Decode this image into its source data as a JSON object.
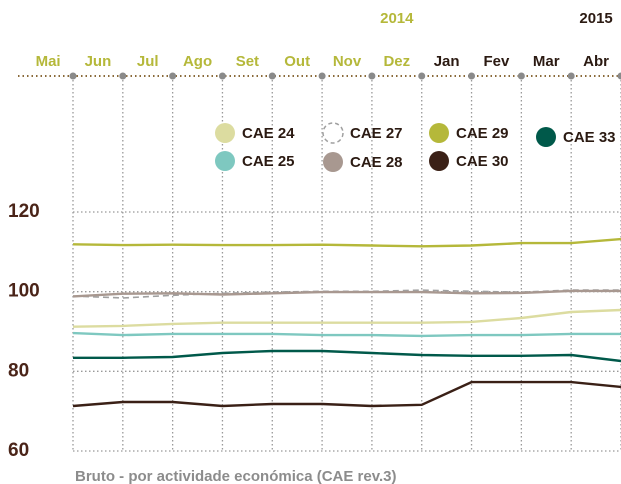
{
  "chart_data": {
    "type": "line",
    "categories": [
      "Mai",
      "Jun",
      "Jul",
      "Ago",
      "Set",
      "Out",
      "Nov",
      "Dez",
      "Jan",
      "Fev",
      "Mar",
      "Abr"
    ],
    "category_colors": [
      "#b5b83a",
      "#b5b83a",
      "#b5b83a",
      "#b5b83a",
      "#b5b83a",
      "#b5b83a",
      "#b5b83a",
      "#b5b83a",
      "#2b1a12",
      "#2b1a12",
      "#2b1a12",
      "#2b1a12"
    ],
    "annotations": [
      {
        "text": "2014",
        "category": 7,
        "color": "#b5b83a"
      },
      {
        "text": "2015",
        "category": 11,
        "color": "#2b1a12"
      }
    ],
    "series": [
      {
        "name": "CAE 24",
        "color": "#dcdca0",
        "values": [
          91.2,
          91.4,
          91.9,
          92.2,
          92.2,
          92.2,
          92.2,
          92.2,
          92.4,
          93.4,
          94.9,
          95.4
        ]
      },
      {
        "name": "CAE 25",
        "color": "#7ec8c0",
        "values": [
          89.6,
          89.1,
          89.4,
          89.4,
          89.4,
          89.1,
          89.1,
          88.9,
          89.1,
          89.1,
          89.4,
          89.4
        ]
      },
      {
        "name": "CAE 27",
        "color": "#a0a0a0",
        "dashed": true,
        "values": [
          98.9,
          98.4,
          99.1,
          99.6,
          99.9,
          100.1,
          100.1,
          100.4,
          100.1,
          99.9,
          100.4,
          100.4
        ]
      },
      {
        "name": "CAE 28",
        "color": "#a89890",
        "values": [
          98.8,
          99.5,
          99.6,
          99.3,
          99.6,
          99.9,
          99.9,
          99.9,
          99.6,
          99.7,
          100.2,
          100.2
        ]
      },
      {
        "name": "CAE 29",
        "color": "#b5b83a",
        "values": [
          111.9,
          111.7,
          111.8,
          111.7,
          111.7,
          111.8,
          111.6,
          111.4,
          111.6,
          112.2,
          112.2,
          113.2
        ]
      },
      {
        "name": "CAE 30",
        "color": "#3a2016",
        "values": [
          71.3,
          72.3,
          72.3,
          71.3,
          71.8,
          71.8,
          71.3,
          71.6,
          77.3,
          77.3,
          77.3,
          76.1
        ]
      },
      {
        "name": "CAE 33",
        "color": "#00594a",
        "values": [
          83.4,
          83.4,
          83.6,
          84.6,
          85.1,
          85.1,
          84.6,
          84.1,
          83.9,
          83.9,
          84.1,
          82.6
        ]
      }
    ],
    "ylim": [
      60,
      120
    ],
    "yticks": [
      60,
      80,
      100,
      120
    ],
    "grid": true,
    "footnote": "Bruto - por actividade económica (CAE rev.3)"
  }
}
